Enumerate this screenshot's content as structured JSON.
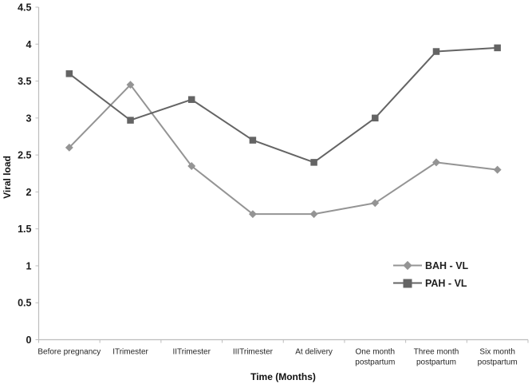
{
  "chart_data": {
    "type": "line",
    "title": "",
    "xlabel": "Time (Months)",
    "ylabel": "Viral load",
    "ylim": [
      0,
      4.5
    ],
    "y_ticks": [
      0,
      0.5,
      1,
      1.5,
      2,
      2.5,
      3,
      3.5,
      4,
      4.5
    ],
    "grid": false,
    "legend_position": "middle-right",
    "axis_color": "#bdbdbd",
    "categories": [
      "Before pregnancy",
      "ITrimester",
      "IITrimester",
      "IIITrimester",
      "At delivery",
      "One month\npostpartum",
      "Three month\npostpartum",
      "Six month\npostpartum"
    ],
    "series": [
      {
        "name": "BAH - VL",
        "marker": "diamond",
        "color": "#949494",
        "values": [
          2.6,
          3.45,
          2.35,
          1.7,
          1.7,
          1.85,
          2.4,
          2.3
        ]
      },
      {
        "name": "PAH - VL",
        "marker": "square",
        "color": "#646464",
        "values": [
          3.6,
          2.97,
          3.25,
          2.7,
          2.4,
          3.0,
          3.9,
          3.95
        ]
      }
    ]
  }
}
